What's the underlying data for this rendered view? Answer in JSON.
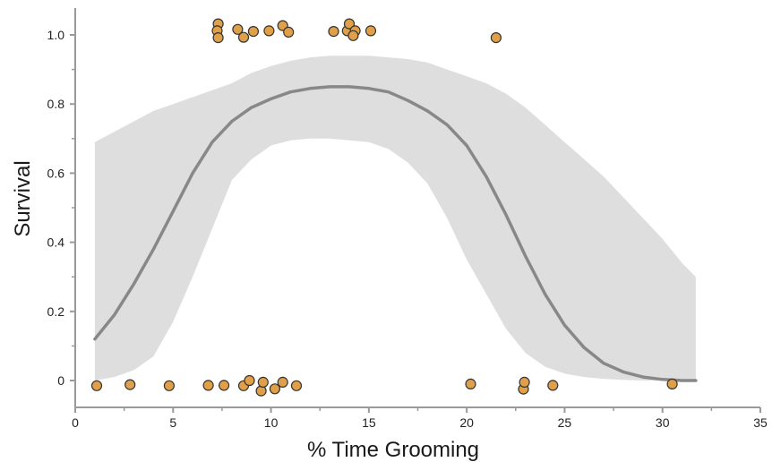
{
  "chart_data": {
    "type": "scatter",
    "title": "",
    "xlabel": "% Time Grooming",
    "ylabel": "Survival",
    "xlim": [
      0,
      35
    ],
    "ylim": [
      -0.08,
      1.08
    ],
    "x_ticks": [
      0,
      5,
      10,
      15,
      20,
      25,
      30,
      35
    ],
    "x_tick_labels": [
      "0",
      "5",
      "10",
      "15",
      "20",
      "25",
      "30",
      "35"
    ],
    "y_ticks": [
      0,
      0.2,
      0.4,
      0.6,
      0.8,
      1.0
    ],
    "y_tick_labels": [
      "0",
      "0.2",
      "0.4",
      "0.6",
      "0.8",
      "1.0"
    ],
    "grid": false,
    "colors": {
      "points_fill": "#E0A04A",
      "points_stroke": "#333333",
      "fit_line": "#888888",
      "confidence_band": "#DEDEDE",
      "axis": "#999999"
    },
    "points": [
      {
        "x": 1.1,
        "y": -0.015
      },
      {
        "x": 2.8,
        "y": -0.012
      },
      {
        "x": 4.8,
        "y": -0.015
      },
      {
        "x": 6.8,
        "y": -0.014
      },
      {
        "x": 7.6,
        "y": -0.014
      },
      {
        "x": 8.6,
        "y": -0.015
      },
      {
        "x": 8.9,
        "y": 0.0
      },
      {
        "x": 9.5,
        "y": -0.03
      },
      {
        "x": 9.6,
        "y": -0.005
      },
      {
        "x": 10.2,
        "y": -0.024
      },
      {
        "x": 10.6,
        "y": -0.005
      },
      {
        "x": 11.3,
        "y": -0.015
      },
      {
        "x": 20.2,
        "y": -0.01
      },
      {
        "x": 22.9,
        "y": -0.025
      },
      {
        "x": 22.95,
        "y": -0.005
      },
      {
        "x": 24.4,
        "y": -0.014
      },
      {
        "x": 30.5,
        "y": -0.01
      },
      {
        "x": 7.3,
        "y": 1.032
      },
      {
        "x": 7.25,
        "y": 1.012
      },
      {
        "x": 7.3,
        "y": 0.992
      },
      {
        "x": 8.3,
        "y": 1.016
      },
      {
        "x": 8.6,
        "y": 0.993
      },
      {
        "x": 9.1,
        "y": 1.01
      },
      {
        "x": 9.9,
        "y": 1.012
      },
      {
        "x": 10.6,
        "y": 1.027
      },
      {
        "x": 10.9,
        "y": 1.008
      },
      {
        "x": 13.2,
        "y": 1.01
      },
      {
        "x": 13.9,
        "y": 1.012
      },
      {
        "x": 14.0,
        "y": 1.032
      },
      {
        "x": 14.3,
        "y": 1.012
      },
      {
        "x": 14.2,
        "y": 0.998
      },
      {
        "x": 15.1,
        "y": 1.012
      },
      {
        "x": 21.5,
        "y": 0.992
      }
    ],
    "fit": {
      "x": [
        1,
        2,
        3,
        4,
        5,
        6,
        7,
        8,
        9,
        10,
        11,
        12,
        13,
        14,
        15,
        16,
        17,
        18,
        19,
        20,
        21,
        22,
        23,
        24,
        25,
        26,
        27,
        28,
        29,
        30,
        31,
        31.7
      ],
      "y": [
        0.12,
        0.19,
        0.28,
        0.38,
        0.49,
        0.6,
        0.69,
        0.75,
        0.79,
        0.815,
        0.835,
        0.845,
        0.85,
        0.85,
        0.845,
        0.835,
        0.81,
        0.78,
        0.74,
        0.68,
        0.59,
        0.48,
        0.36,
        0.25,
        0.16,
        0.095,
        0.05,
        0.025,
        0.01,
        0.003,
        0.0,
        0.0
      ],
      "lower": [
        0.0,
        0.01,
        0.03,
        0.07,
        0.17,
        0.3,
        0.44,
        0.58,
        0.64,
        0.68,
        0.695,
        0.7,
        0.7,
        0.695,
        0.69,
        0.67,
        0.63,
        0.57,
        0.47,
        0.35,
        0.25,
        0.15,
        0.08,
        0.04,
        0.02,
        0.01,
        0.005,
        0.002,
        0.0,
        0.0,
        0.0,
        0.0
      ],
      "upper": [
        0.69,
        0.72,
        0.75,
        0.78,
        0.8,
        0.82,
        0.84,
        0.86,
        0.89,
        0.91,
        0.925,
        0.935,
        0.94,
        0.94,
        0.94,
        0.935,
        0.93,
        0.92,
        0.9,
        0.88,
        0.86,
        0.83,
        0.79,
        0.74,
        0.69,
        0.64,
        0.59,
        0.53,
        0.47,
        0.41,
        0.34,
        0.3
      ]
    }
  }
}
